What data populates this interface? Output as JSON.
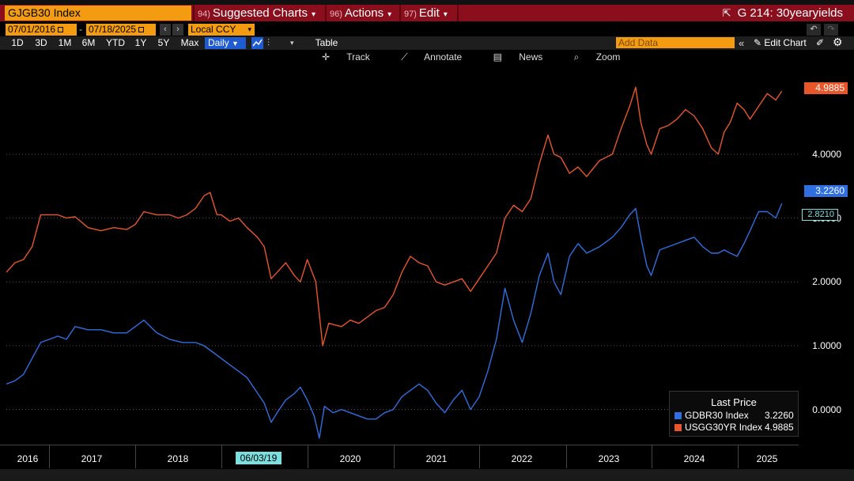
{
  "title_bar": {
    "ticker": "GJGB30 Index",
    "menus": [
      {
        "num": "94)",
        "label": "Suggested Charts"
      },
      {
        "num": "96)",
        "label": "Actions"
      },
      {
        "num": "97)",
        "label": "Edit"
      }
    ],
    "chart_id": "G 214: 30yearyields"
  },
  "date_bar": {
    "start_date": "07/01/2016",
    "end_date": "07/18/2025",
    "currency": "Local CCY"
  },
  "range_bar": {
    "ranges": [
      "1D",
      "3D",
      "1M",
      "6M",
      "YTD",
      "1Y",
      "5Y",
      "Max"
    ],
    "frequency": "Daily",
    "table_label": "Table",
    "add_data_placeholder": "Add Data",
    "edit_chart_label": "Edit Chart"
  },
  "toolbar": {
    "track": "Track",
    "annotate": "Annotate",
    "news": "News",
    "zoom": "Zoom"
  },
  "colors": {
    "usgg": "#e8562a",
    "gdbr": "#2f6fe0",
    "crosshair": "#7ce0e0",
    "header_red": "#8a0e1c",
    "accent_orange": "#f39c12"
  },
  "chart_data": {
    "type": "line",
    "x_labels": [
      "2016",
      "2017",
      "2018",
      "06/03/19",
      "2020",
      "2021",
      "2022",
      "2023",
      "2024",
      "2025"
    ],
    "crosshair_date": "06/03/19",
    "crosshair_value": "2.8210",
    "y_tick_labels": [
      "0.0000",
      "1.0000",
      "2.0000",
      "3.0000",
      "4.0000"
    ],
    "y_ticks": [
      0,
      1,
      2,
      3,
      4
    ],
    "ylim": [
      -0.55,
      5.4
    ],
    "xlim": [
      2016.5,
      2025.55
    ],
    "legend_title": "Last Price",
    "series": [
      {
        "name": "USGG30YR Index",
        "last_price": "4.9885",
        "color": "#e8562a",
        "points": [
          [
            2016.5,
            2.15
          ],
          [
            2016.6,
            2.3
          ],
          [
            2016.7,
            2.35
          ],
          [
            2016.8,
            2.55
          ],
          [
            2016.9,
            3.05
          ],
          [
            2017.0,
            3.05
          ],
          [
            2017.1,
            3.05
          ],
          [
            2017.2,
            3.0
          ],
          [
            2017.3,
            3.02
          ],
          [
            2017.45,
            2.85
          ],
          [
            2017.6,
            2.8
          ],
          [
            2017.75,
            2.85
          ],
          [
            2017.9,
            2.82
          ],
          [
            2018.0,
            2.9
          ],
          [
            2018.1,
            3.1
          ],
          [
            2018.25,
            3.05
          ],
          [
            2018.4,
            3.05
          ],
          [
            2018.5,
            3.0
          ],
          [
            2018.6,
            3.05
          ],
          [
            2018.7,
            3.15
          ],
          [
            2018.8,
            3.35
          ],
          [
            2018.87,
            3.4
          ],
          [
            2018.95,
            3.05
          ],
          [
            2019.0,
            3.05
          ],
          [
            2019.1,
            2.95
          ],
          [
            2019.2,
            3.0
          ],
          [
            2019.3,
            2.85
          ],
          [
            2019.42,
            2.7
          ],
          [
            2019.5,
            2.55
          ],
          [
            2019.58,
            2.05
          ],
          [
            2019.65,
            2.15
          ],
          [
            2019.75,
            2.3
          ],
          [
            2019.85,
            2.1
          ],
          [
            2019.92,
            2.0
          ],
          [
            2020.0,
            2.35
          ],
          [
            2020.1,
            2.0
          ],
          [
            2020.18,
            1.0
          ],
          [
            2020.25,
            1.35
          ],
          [
            2020.4,
            1.3
          ],
          [
            2020.5,
            1.4
          ],
          [
            2020.6,
            1.35
          ],
          [
            2020.7,
            1.45
          ],
          [
            2020.8,
            1.55
          ],
          [
            2020.9,
            1.6
          ],
          [
            2021.0,
            1.8
          ],
          [
            2021.1,
            2.15
          ],
          [
            2021.2,
            2.4
          ],
          [
            2021.3,
            2.3
          ],
          [
            2021.4,
            2.25
          ],
          [
            2021.5,
            2.0
          ],
          [
            2021.6,
            1.95
          ],
          [
            2021.7,
            2.0
          ],
          [
            2021.8,
            2.05
          ],
          [
            2021.9,
            1.85
          ],
          [
            2022.0,
            2.05
          ],
          [
            2022.1,
            2.25
          ],
          [
            2022.2,
            2.45
          ],
          [
            2022.3,
            3.0
          ],
          [
            2022.4,
            3.2
          ],
          [
            2022.5,
            3.1
          ],
          [
            2022.6,
            3.3
          ],
          [
            2022.7,
            3.85
          ],
          [
            2022.8,
            4.3
          ],
          [
            2022.87,
            4.0
          ],
          [
            2022.95,
            3.95
          ],
          [
            2023.05,
            3.7
          ],
          [
            2023.15,
            3.8
          ],
          [
            2023.25,
            3.65
          ],
          [
            2023.4,
            3.9
          ],
          [
            2023.55,
            4.0
          ],
          [
            2023.65,
            4.4
          ],
          [
            2023.75,
            4.75
          ],
          [
            2023.82,
            5.05
          ],
          [
            2023.88,
            4.5
          ],
          [
            2023.95,
            4.15
          ],
          [
            2024.0,
            4.0
          ],
          [
            2024.1,
            4.4
          ],
          [
            2024.2,
            4.45
          ],
          [
            2024.3,
            4.55
          ],
          [
            2024.4,
            4.7
          ],
          [
            2024.5,
            4.6
          ],
          [
            2024.6,
            4.4
          ],
          [
            2024.7,
            4.1
          ],
          [
            2024.78,
            4.0
          ],
          [
            2024.85,
            4.35
          ],
          [
            2024.92,
            4.5
          ],
          [
            2025.0,
            4.8
          ],
          [
            2025.08,
            4.7
          ],
          [
            2025.15,
            4.55
          ],
          [
            2025.25,
            4.75
          ],
          [
            2025.35,
            4.95
          ],
          [
            2025.45,
            4.85
          ],
          [
            2025.52,
            4.99
          ]
        ]
      },
      {
        "name": "GDBR30 Index",
        "last_price": "3.2260",
        "color": "#2f6fe0",
        "points": [
          [
            2016.5,
            0.4
          ],
          [
            2016.6,
            0.45
          ],
          [
            2016.7,
            0.55
          ],
          [
            2016.8,
            0.8
          ],
          [
            2016.9,
            1.05
          ],
          [
            2017.0,
            1.1
          ],
          [
            2017.1,
            1.15
          ],
          [
            2017.2,
            1.1
          ],
          [
            2017.3,
            1.3
          ],
          [
            2017.45,
            1.25
          ],
          [
            2017.6,
            1.25
          ],
          [
            2017.75,
            1.2
          ],
          [
            2017.9,
            1.2
          ],
          [
            2018.0,
            1.3
          ],
          [
            2018.1,
            1.4
          ],
          [
            2018.25,
            1.2
          ],
          [
            2018.4,
            1.1
          ],
          [
            2018.55,
            1.05
          ],
          [
            2018.7,
            1.05
          ],
          [
            2018.8,
            1.0
          ],
          [
            2018.9,
            0.9
          ],
          [
            2019.0,
            0.8
          ],
          [
            2019.1,
            0.7
          ],
          [
            2019.2,
            0.6
          ],
          [
            2019.3,
            0.5
          ],
          [
            2019.4,
            0.3
          ],
          [
            2019.5,
            0.1
          ],
          [
            2019.58,
            -0.2
          ],
          [
            2019.65,
            -0.05
          ],
          [
            2019.75,
            0.15
          ],
          [
            2019.85,
            0.25
          ],
          [
            2019.92,
            0.35
          ],
          [
            2020.0,
            0.15
          ],
          [
            2020.08,
            -0.1
          ],
          [
            2020.14,
            -0.45
          ],
          [
            2020.2,
            0.05
          ],
          [
            2020.3,
            -0.05
          ],
          [
            2020.4,
            0.0
          ],
          [
            2020.5,
            -0.05
          ],
          [
            2020.6,
            -0.1
          ],
          [
            2020.7,
            -0.15
          ],
          [
            2020.8,
            -0.15
          ],
          [
            2020.9,
            -0.05
          ],
          [
            2021.0,
            0.0
          ],
          [
            2021.1,
            0.2
          ],
          [
            2021.2,
            0.3
          ],
          [
            2021.3,
            0.4
          ],
          [
            2021.4,
            0.3
          ],
          [
            2021.5,
            0.1
          ],
          [
            2021.6,
            -0.05
          ],
          [
            2021.7,
            0.15
          ],
          [
            2021.8,
            0.3
          ],
          [
            2021.9,
            0.0
          ],
          [
            2022.0,
            0.2
          ],
          [
            2022.1,
            0.6
          ],
          [
            2022.2,
            1.1
          ],
          [
            2022.3,
            1.9
          ],
          [
            2022.4,
            1.4
          ],
          [
            2022.5,
            1.05
          ],
          [
            2022.6,
            1.5
          ],
          [
            2022.7,
            2.1
          ],
          [
            2022.8,
            2.45
          ],
          [
            2022.87,
            2.0
          ],
          [
            2022.95,
            1.8
          ],
          [
            2023.05,
            2.4
          ],
          [
            2023.15,
            2.6
          ],
          [
            2023.25,
            2.45
          ],
          [
            2023.4,
            2.55
          ],
          [
            2023.55,
            2.7
          ],
          [
            2023.65,
            2.85
          ],
          [
            2023.75,
            3.05
          ],
          [
            2023.82,
            3.15
          ],
          [
            2023.88,
            2.7
          ],
          [
            2023.95,
            2.25
          ],
          [
            2024.0,
            2.1
          ],
          [
            2024.1,
            2.5
          ],
          [
            2024.2,
            2.55
          ],
          [
            2024.3,
            2.6
          ],
          [
            2024.4,
            2.65
          ],
          [
            2024.5,
            2.7
          ],
          [
            2024.6,
            2.55
          ],
          [
            2024.7,
            2.45
          ],
          [
            2024.78,
            2.45
          ],
          [
            2024.85,
            2.5
          ],
          [
            2024.92,
            2.45
          ],
          [
            2025.0,
            2.4
          ],
          [
            2025.08,
            2.6
          ],
          [
            2025.15,
            2.8
          ],
          [
            2025.25,
            3.1
          ],
          [
            2025.35,
            3.1
          ],
          [
            2025.45,
            3.0
          ],
          [
            2025.52,
            3.23
          ]
        ]
      }
    ]
  }
}
